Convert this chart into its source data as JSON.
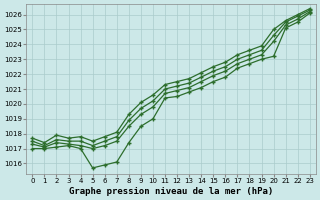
{
  "background_color": "#cce8e8",
  "grid_color": "#aacccc",
  "line_color": "#2d6e2d",
  "xlabel": "Graphe pression niveau de la mer (hPa)",
  "ylim": [
    1015.3,
    1026.7
  ],
  "yticks": [
    1016,
    1017,
    1018,
    1019,
    1020,
    1021,
    1022,
    1023,
    1024,
    1025,
    1026
  ],
  "xticks": [
    0,
    1,
    2,
    3,
    4,
    5,
    6,
    7,
    8,
    9,
    10,
    11,
    12,
    13,
    14,
    15,
    16,
    17,
    18,
    19,
    20,
    21,
    22,
    23
  ],
  "series1": [
    1017.0,
    1017.0,
    1017.1,
    1017.2,
    1017.0,
    1015.7,
    1015.9,
    1016.1,
    1017.4,
    1018.5,
    1019.0,
    1020.4,
    1020.5,
    1020.8,
    1021.1,
    1021.5,
    1021.8,
    1022.4,
    1022.7,
    1023.0,
    1023.2,
    1025.1,
    1025.5,
    1026.1
  ],
  "series2": [
    1017.3,
    1017.1,
    1017.4,
    1017.3,
    1017.2,
    1017.0,
    1017.2,
    1017.5,
    1018.5,
    1019.3,
    1019.8,
    1020.7,
    1020.9,
    1021.1,
    1021.5,
    1021.9,
    1022.2,
    1022.7,
    1023.0,
    1023.3,
    1024.2,
    1025.3,
    1025.7,
    1026.2
  ],
  "series3": [
    1017.5,
    1017.2,
    1017.6,
    1017.5,
    1017.5,
    1017.2,
    1017.5,
    1017.8,
    1018.9,
    1019.7,
    1020.2,
    1021.0,
    1021.2,
    1021.4,
    1021.8,
    1022.2,
    1022.5,
    1023.0,
    1023.3,
    1023.6,
    1024.6,
    1025.5,
    1025.9,
    1026.3
  ],
  "series4": [
    1017.7,
    1017.4,
    1017.9,
    1017.7,
    1017.8,
    1017.5,
    1017.8,
    1018.1,
    1019.3,
    1020.1,
    1020.6,
    1021.3,
    1021.5,
    1021.7,
    1022.1,
    1022.5,
    1022.8,
    1023.3,
    1023.6,
    1023.9,
    1025.0,
    1025.6,
    1026.0,
    1026.4
  ]
}
